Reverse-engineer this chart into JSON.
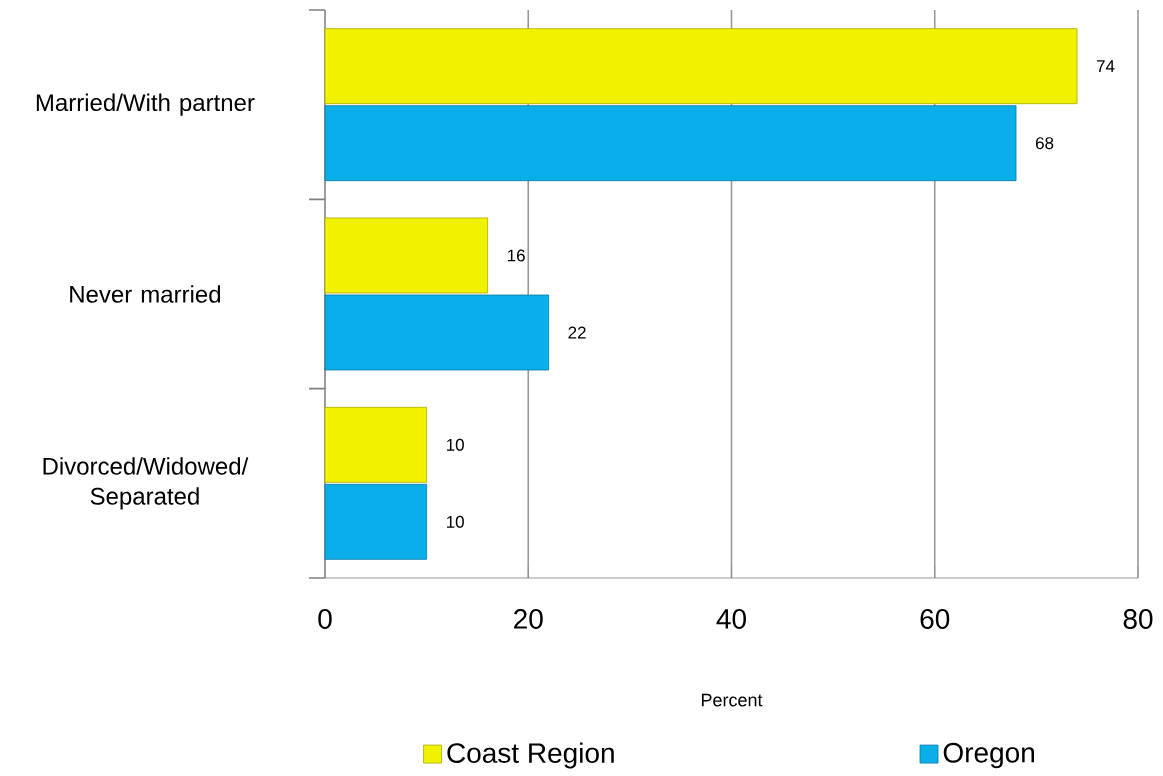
{
  "chart_data": {
    "type": "bar",
    "orientation": "horizontal",
    "xlabel": "Percent",
    "categories": [
      "Married/With partner",
      "Never married",
      "Divorced/Widowed/ Separated"
    ],
    "series": [
      {
        "name": "Coast Region",
        "color": "#f2f200",
        "values": [
          74,
          16,
          10
        ]
      },
      {
        "name": "Oregon",
        "color": "#0aaee8",
        "values": [
          68,
          22,
          10
        ]
      }
    ],
    "xlim": [
      0,
      80
    ],
    "xticks": [
      0,
      20,
      40,
      60,
      80
    ],
    "grid": "x",
    "legend": "bottom",
    "data_labels": true
  }
}
